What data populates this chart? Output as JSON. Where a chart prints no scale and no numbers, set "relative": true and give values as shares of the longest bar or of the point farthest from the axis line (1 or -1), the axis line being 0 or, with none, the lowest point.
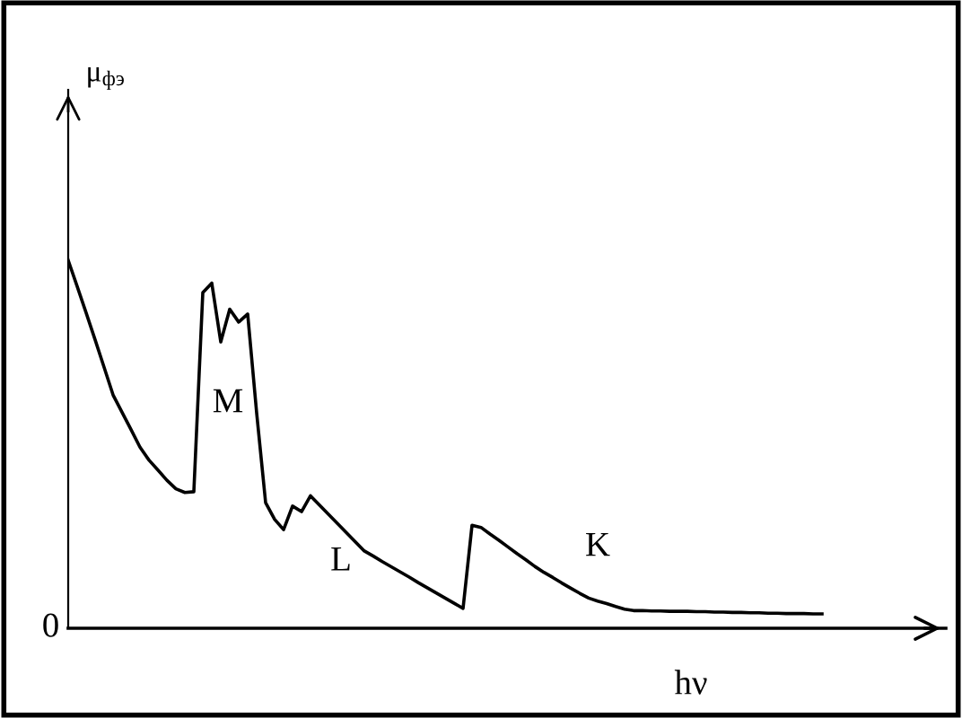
{
  "chart_data": {
    "type": "line",
    "relative": true,
    "xlabel": "hν",
    "tick_labels": false,
    "marker": "none",
    "line_style": "solid",
    "categories": [
      null,
      null,
      null,
      null,
      null,
      null,
      null,
      null,
      null,
      null,
      null,
      null,
      null,
      null,
      null,
      null,
      null,
      null,
      null,
      null,
      null,
      null,
      null,
      null,
      null,
      null,
      null,
      null,
      null,
      null,
      null,
      null,
      null,
      null,
      null,
      null,
      null,
      null,
      null,
      null,
      null,
      null,
      null,
      null,
      null,
      null,
      null,
      null,
      null,
      null,
      null,
      null,
      null,
      null,
      null,
      null,
      null,
      null,
      null,
      null,
      null,
      null,
      null,
      null,
      null,
      null,
      null,
      null,
      null,
      null,
      null,
      null,
      null,
      null,
      null,
      null,
      null,
      null,
      null,
      null,
      null,
      null,
      null,
      null,
      null
    ],
    "series": [
      {
        "color": "#000000",
        "values": [
          1.0,
          0.929,
          0.857,
          0.784,
          0.709,
          0.634,
          0.587,
          0.54,
          0.492,
          0.457,
          0.43,
          0.402,
          0.379,
          0.369,
          0.371,
          0.912,
          0.938,
          0.778,
          0.867,
          0.832,
          0.854,
          0.585,
          0.341,
          0.296,
          0.268,
          0.332,
          0.317,
          0.36,
          0.335,
          0.31,
          0.285,
          0.26,
          0.235,
          0.21,
          0.196,
          0.181,
          0.167,
          0.153,
          0.139,
          0.124,
          0.11,
          0.096,
          0.082,
          0.068,
          0.054,
          0.28,
          0.274,
          0.256,
          0.239,
          0.221,
          0.203,
          0.186,
          0.168,
          0.152,
          0.138,
          0.123,
          0.109,
          0.095,
          0.082,
          0.074,
          0.067,
          0.059,
          0.052,
          0.048,
          0.048,
          0.047,
          0.047,
          0.046,
          0.046,
          0.046,
          0.045,
          0.045,
          0.044,
          0.044,
          0.043,
          0.043,
          0.042,
          0.042,
          0.041,
          0.041,
          0.04,
          0.04,
          0.04,
          0.039,
          0.039
        ]
      }
    ],
    "annotations": [
      "0",
      "M",
      "L",
      "K",
      "μ$_{фэ}$"
    ]
  }
}
